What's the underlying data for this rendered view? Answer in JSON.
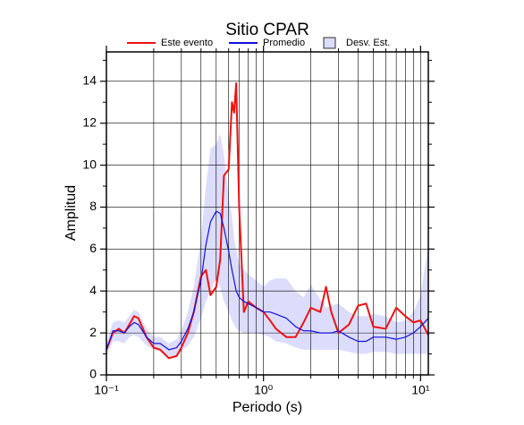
{
  "chart_data": {
    "type": "line",
    "title": "Sitio CPAR",
    "xlabel": "Periodo (s)",
    "ylabel": "Amplitud",
    "xscale": "log",
    "grid": true,
    "xlim": [
      0.1,
      11.2
    ],
    "ylim": [
      0,
      15.4
    ],
    "xticks": [
      {
        "value": 0.1,
        "label": "10⁻¹"
      },
      {
        "value": 1,
        "label": "10⁰"
      },
      {
        "value": 10,
        "label": "10¹"
      }
    ],
    "xminorticks": [
      0.2,
      0.3,
      0.4,
      0.5,
      0.6,
      0.7,
      0.8,
      0.9,
      2,
      3,
      4,
      5,
      6,
      7,
      8,
      9
    ],
    "yticks": [
      0,
      2,
      4,
      6,
      8,
      10,
      12,
      14
    ],
    "yminorticks": [
      1,
      3,
      5,
      7,
      9,
      11,
      13,
      15
    ],
    "x": [
      0.1,
      0.11,
      0.12,
      0.13,
      0.14,
      0.15,
      0.16,
      0.18,
      0.2,
      0.22,
      0.25,
      0.28,
      0.3,
      0.33,
      0.36,
      0.4,
      0.43,
      0.46,
      0.5,
      0.53,
      0.56,
      0.6,
      0.63,
      0.65,
      0.67,
      0.7,
      0.75,
      0.8,
      0.9,
      1.0,
      1.1,
      1.2,
      1.4,
      1.6,
      1.8,
      2.0,
      2.3,
      2.5,
      2.7,
      3.0,
      3.5,
      4.0,
      4.5,
      5.0,
      6.0,
      7.0,
      8.0,
      9.0,
      10.0,
      11.2
    ],
    "series": [
      {
        "name": "Este evento",
        "color": "#ee1111",
        "kind": "line",
        "width": 2,
        "values": [
          1.2,
          2.0,
          2.2,
          2.0,
          2.4,
          2.8,
          2.7,
          1.8,
          1.3,
          1.2,
          0.8,
          0.9,
          1.3,
          2.0,
          3.0,
          4.7,
          5.0,
          3.8,
          4.2,
          5.5,
          9.5,
          9.8,
          13.0,
          12.5,
          13.9,
          8.0,
          3.0,
          3.5,
          3.2,
          3.0,
          2.6,
          2.2,
          1.8,
          1.8,
          2.5,
          3.2,
          3.0,
          4.2,
          3.0,
          2.0,
          2.4,
          3.3,
          3.4,
          2.3,
          2.2,
          3.2,
          2.8,
          2.5,
          2.6,
          1.9
        ]
      },
      {
        "name": "Promedio",
        "color": "#1111dd",
        "kind": "line",
        "width": 1.2,
        "values": [
          1.2,
          2.1,
          2.1,
          2.0,
          2.3,
          2.5,
          2.4,
          1.8,
          1.5,
          1.5,
          1.2,
          1.3,
          1.6,
          2.2,
          3.0,
          4.5,
          6.2,
          7.3,
          7.8,
          7.7,
          7.0,
          5.9,
          5.0,
          4.5,
          4.0,
          3.7,
          3.5,
          3.4,
          3.2,
          3.0,
          3.0,
          2.9,
          2.7,
          2.3,
          2.1,
          2.1,
          2.0,
          2.0,
          2.0,
          2.1,
          1.8,
          1.6,
          1.6,
          1.8,
          1.8,
          1.7,
          1.8,
          2.0,
          2.3,
          2.7
        ]
      },
      {
        "name": "Desv. Est.",
        "color": "#dcdcfc",
        "kind": "band",
        "values": [
          1.5,
          2.5,
          2.6,
          2.5,
          2.8,
          3.1,
          3.0,
          2.2,
          1.8,
          1.8,
          1.5,
          1.7,
          2.1,
          3.0,
          4.2,
          6.5,
          9.0,
          10.8,
          11.0,
          11.5,
          10.5,
          8.5,
          7.5,
          6.5,
          6.0,
          5.3,
          5.0,
          4.8,
          4.5,
          4.2,
          4.5,
          4.6,
          4.6,
          4.0,
          3.7,
          4.3,
          3.6,
          3.2,
          3.3,
          3.4,
          3.0,
          2.8,
          2.8,
          2.9,
          2.8,
          2.5,
          2.6,
          3.0,
          3.8,
          6.2
        ],
        "lower": [
          0.9,
          1.6,
          1.6,
          1.5,
          1.8,
          1.9,
          1.8,
          1.4,
          1.2,
          1.2,
          0.9,
          0.9,
          1.1,
          1.4,
          1.8,
          2.7,
          3.5,
          4.0,
          4.6,
          4.2,
          3.5,
          3.0,
          2.6,
          2.4,
          2.2,
          2.1,
          2.0,
          2.0,
          2.0,
          1.9,
          1.8,
          1.6,
          1.5,
          1.3,
          1.2,
          1.2,
          1.2,
          1.2,
          1.2,
          1.2,
          1.1,
          1.0,
          1.0,
          1.1,
          1.1,
          1.0,
          1.0,
          1.0,
          1.0,
          1.0
        ]
      }
    ]
  }
}
